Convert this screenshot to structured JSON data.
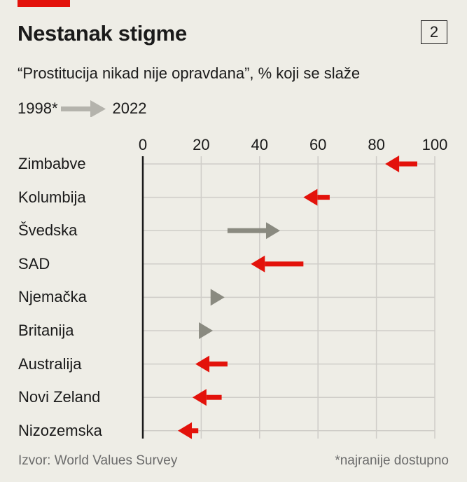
{
  "header": {
    "title": "Nestanak stigme",
    "number": "2",
    "subtitle": "“Prostitucija nikad nije opravdana”, % koji se slaže"
  },
  "legend": {
    "from": "1998*",
    "to": "2022"
  },
  "footer": {
    "source": "Izvor: World Values Survey",
    "note": "*najranije dostupno"
  },
  "colors": {
    "decrease": "#e3120b",
    "increase": "#8a8a80",
    "background": "#eeede6"
  },
  "chart_data": {
    "type": "arrow",
    "title": "Nestanak stigme",
    "subtitle": "“Prostitucija nikad nije opravdana”, % koji se slaže",
    "xlim": [
      0,
      100
    ],
    "xticks": [
      "0",
      "20",
      "40",
      "60",
      "80",
      "100"
    ],
    "grid": true,
    "series": [
      {
        "name": "1998*"
      },
      {
        "name": "2022"
      }
    ],
    "categories": [
      "Zimbabve",
      "Kolumbija",
      "Švedska",
      "SAD",
      "Njemačka",
      "Britanija",
      "Australija",
      "Novi Zeland",
      "Nizozemska"
    ],
    "start": [
      94,
      64,
      29,
      55,
      27,
      23,
      29,
      27,
      19
    ],
    "end": [
      83,
      55,
      47,
      37,
      28,
      24,
      18,
      17,
      12
    ]
  }
}
